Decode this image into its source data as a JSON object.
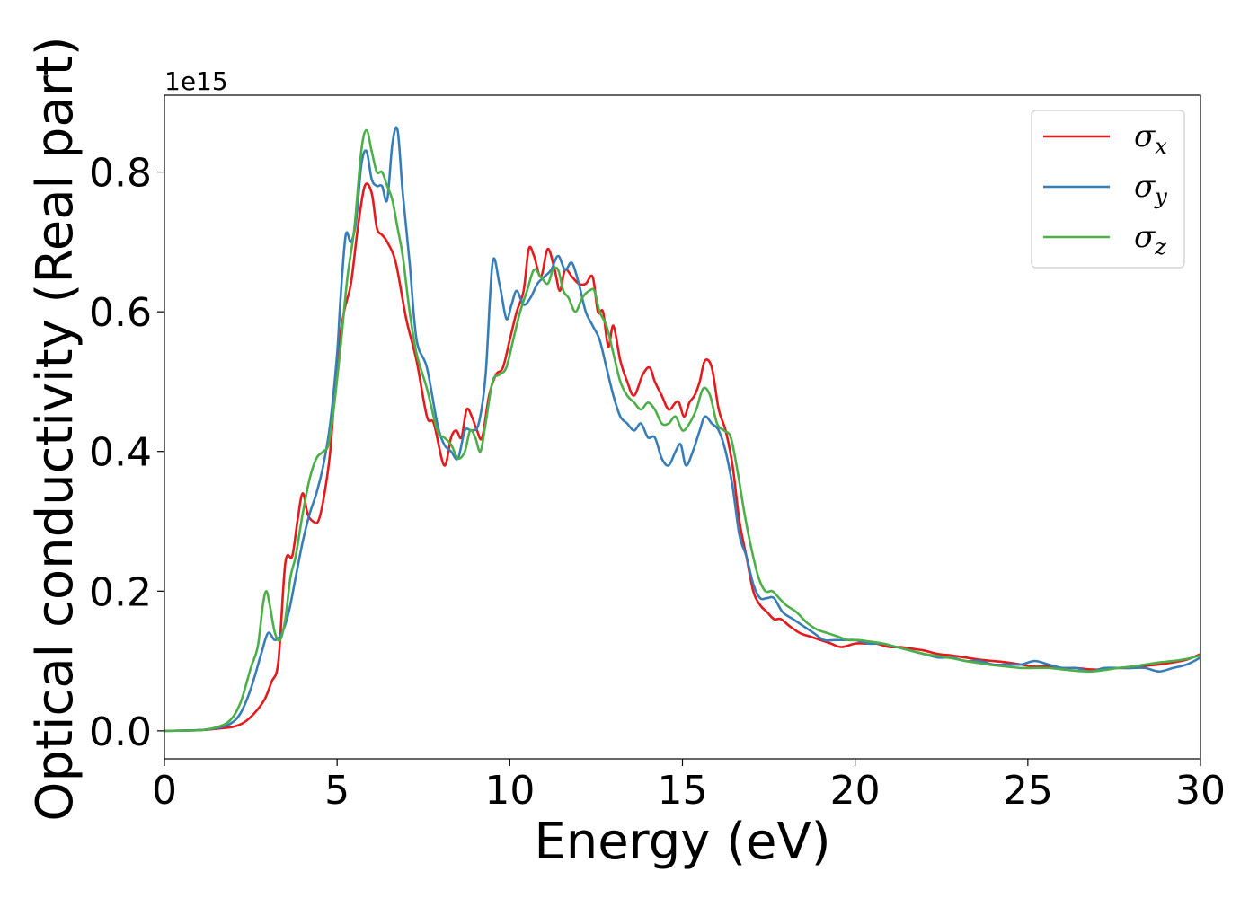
{
  "chart_data": {
    "type": "line",
    "xlabel": "Energy (eV)",
    "ylabel": "Optical conductivity (Real part)",
    "y_offset_label": "1e15",
    "xlim": [
      0,
      30
    ],
    "ylim": [
      -0.04,
      0.91
    ],
    "x_ticks": [
      0,
      5,
      10,
      15,
      20,
      25,
      30
    ],
    "x_tick_labels": [
      "0",
      "5",
      "10",
      "15",
      "20",
      "25",
      "30"
    ],
    "y_ticks": [
      0.0,
      0.2,
      0.4,
      0.6,
      0.8
    ],
    "y_tick_labels": [
      "0.0",
      "0.2",
      "0.4",
      "0.6",
      "0.8"
    ],
    "grid": false,
    "legend_position": "top-right",
    "series": [
      {
        "name": "σ",
        "subscript": "x",
        "color": "#e41a1c",
        "x": [
          0,
          1,
          1.5,
          2.0,
          2.3,
          2.6,
          2.9,
          3.1,
          3.3,
          3.5,
          3.7,
          3.85,
          4.0,
          4.15,
          4.3,
          4.45,
          4.6,
          4.8,
          5.0,
          5.2,
          5.4,
          5.6,
          5.8,
          6.0,
          6.15,
          6.3,
          6.45,
          6.7,
          7.0,
          7.3,
          7.6,
          7.8,
          8.1,
          8.3,
          8.45,
          8.6,
          8.75,
          8.9,
          9.05,
          9.2,
          9.4,
          9.6,
          9.8,
          10.0,
          10.2,
          10.4,
          10.55,
          10.7,
          10.9,
          11.1,
          11.3,
          11.45,
          11.6,
          11.8,
          12.0,
          12.2,
          12.4,
          12.55,
          12.7,
          12.85,
          13.0,
          13.2,
          13.4,
          13.6,
          13.85,
          14.05,
          14.2,
          14.4,
          14.6,
          14.8,
          14.9,
          15.05,
          15.2,
          15.35,
          15.5,
          15.65,
          15.85,
          16.05,
          16.25,
          16.45,
          16.65,
          16.85,
          17.05,
          17.25,
          17.45,
          17.65,
          17.85,
          18.1,
          18.4,
          18.7,
          19.0,
          19.3,
          19.6,
          20.0,
          20.3,
          20.6,
          21.0,
          21.3,
          21.6,
          22.0,
          22.4,
          22.8,
          23.2,
          23.6,
          24.0,
          24.4,
          24.8,
          25.2,
          25.6,
          26.0,
          26.4,
          26.8,
          27.2,
          27.6,
          28.0,
          28.4,
          28.8,
          29.2,
          29.6,
          30.0
        ],
        "y": [
          0.0,
          0.001,
          0.003,
          0.006,
          0.012,
          0.025,
          0.045,
          0.07,
          0.1,
          0.24,
          0.25,
          0.3,
          0.34,
          0.31,
          0.3,
          0.3,
          0.33,
          0.4,
          0.53,
          0.6,
          0.64,
          0.72,
          0.78,
          0.77,
          0.72,
          0.71,
          0.7,
          0.67,
          0.59,
          0.53,
          0.45,
          0.44,
          0.38,
          0.42,
          0.43,
          0.42,
          0.46,
          0.45,
          0.43,
          0.42,
          0.48,
          0.51,
          0.52,
          0.56,
          0.6,
          0.63,
          0.69,
          0.68,
          0.65,
          0.69,
          0.66,
          0.63,
          0.66,
          0.65,
          0.64,
          0.64,
          0.65,
          0.6,
          0.6,
          0.55,
          0.58,
          0.53,
          0.5,
          0.48,
          0.51,
          0.52,
          0.5,
          0.48,
          0.46,
          0.47,
          0.47,
          0.45,
          0.47,
          0.48,
          0.5,
          0.53,
          0.52,
          0.46,
          0.43,
          0.38,
          0.3,
          0.25,
          0.2,
          0.18,
          0.17,
          0.16,
          0.16,
          0.15,
          0.14,
          0.135,
          0.13,
          0.125,
          0.12,
          0.125,
          0.125,
          0.125,
          0.12,
          0.12,
          0.118,
          0.115,
          0.11,
          0.108,
          0.105,
          0.102,
          0.1,
          0.098,
          0.095,
          0.092,
          0.092,
          0.09,
          0.09,
          0.088,
          0.088,
          0.09,
          0.09,
          0.093,
          0.095,
          0.098,
          0.102,
          0.11
        ]
      },
      {
        "name": "σ",
        "subscript": "y",
        "color": "#377eb8",
        "x": [
          0,
          1,
          1.5,
          1.9,
          2.2,
          2.5,
          2.8,
          3.0,
          3.2,
          3.4,
          3.6,
          3.8,
          4.0,
          4.2,
          4.4,
          4.6,
          4.8,
          5.0,
          5.1,
          5.25,
          5.4,
          5.55,
          5.7,
          5.85,
          6.0,
          6.15,
          6.3,
          6.45,
          6.6,
          6.75,
          6.9,
          7.1,
          7.3,
          7.6,
          7.9,
          8.1,
          8.3,
          8.5,
          8.7,
          8.9,
          9.1,
          9.3,
          9.5,
          9.7,
          9.9,
          10.05,
          10.2,
          10.4,
          10.6,
          10.8,
          11.0,
          11.2,
          11.4,
          11.6,
          11.8,
          12.0,
          12.2,
          12.4,
          12.6,
          12.8,
          13.0,
          13.2,
          13.4,
          13.6,
          13.8,
          14.0,
          14.2,
          14.4,
          14.6,
          14.8,
          14.95,
          15.1,
          15.3,
          15.5,
          15.65,
          15.85,
          16.05,
          16.25,
          16.45,
          16.65,
          16.85,
          17.05,
          17.25,
          17.45,
          17.65,
          17.9,
          18.2,
          18.5,
          18.8,
          19.1,
          19.4,
          19.7,
          20.0,
          20.4,
          20.8,
          21.2,
          21.6,
          22.0,
          22.4,
          22.8,
          23.2,
          23.6,
          24.0,
          24.4,
          24.8,
          25.2,
          25.6,
          26.0,
          26.4,
          26.8,
          27.2,
          27.6,
          28.0,
          28.4,
          28.8,
          29.2,
          29.6,
          30.0
        ],
        "y": [
          0.0,
          0.001,
          0.004,
          0.01,
          0.025,
          0.06,
          0.11,
          0.14,
          0.13,
          0.14,
          0.17,
          0.22,
          0.27,
          0.31,
          0.34,
          0.38,
          0.44,
          0.54,
          0.62,
          0.71,
          0.7,
          0.73,
          0.81,
          0.83,
          0.79,
          0.78,
          0.78,
          0.76,
          0.84,
          0.86,
          0.77,
          0.67,
          0.56,
          0.52,
          0.44,
          0.41,
          0.4,
          0.39,
          0.43,
          0.43,
          0.44,
          0.51,
          0.67,
          0.64,
          0.59,
          0.61,
          0.63,
          0.61,
          0.62,
          0.64,
          0.65,
          0.66,
          0.68,
          0.66,
          0.67,
          0.64,
          0.6,
          0.58,
          0.56,
          0.52,
          0.48,
          0.45,
          0.44,
          0.43,
          0.44,
          0.42,
          0.42,
          0.39,
          0.38,
          0.4,
          0.41,
          0.38,
          0.4,
          0.43,
          0.45,
          0.44,
          0.43,
          0.4,
          0.35,
          0.28,
          0.25,
          0.21,
          0.19,
          0.19,
          0.19,
          0.17,
          0.16,
          0.15,
          0.14,
          0.13,
          0.13,
          0.13,
          0.13,
          0.125,
          0.125,
          0.12,
          0.115,
          0.11,
          0.105,
          0.105,
          0.1,
          0.1,
          0.095,
          0.095,
          0.095,
          0.1,
          0.095,
          0.09,
          0.09,
          0.085,
          0.09,
          0.09,
          0.09,
          0.09,
          0.085,
          0.09,
          0.095,
          0.105
        ]
      },
      {
        "name": "σ",
        "subscript": "z",
        "color": "#4daf4a",
        "x": [
          0,
          1,
          1.5,
          1.9,
          2.2,
          2.5,
          2.7,
          2.85,
          2.95,
          3.05,
          3.2,
          3.35,
          3.5,
          3.65,
          3.8,
          4.0,
          4.2,
          4.4,
          4.6,
          4.75,
          4.9,
          5.1,
          5.3,
          5.5,
          5.7,
          5.85,
          6.0,
          6.15,
          6.3,
          6.45,
          6.6,
          6.75,
          6.9,
          7.1,
          7.3,
          7.6,
          7.9,
          8.1,
          8.3,
          8.5,
          8.7,
          8.85,
          9.0,
          9.15,
          9.3,
          9.5,
          9.7,
          9.9,
          10.1,
          10.3,
          10.5,
          10.7,
          10.9,
          11.1,
          11.25,
          11.4,
          11.55,
          11.7,
          11.9,
          12.1,
          12.3,
          12.45,
          12.6,
          12.8,
          13.0,
          13.2,
          13.4,
          13.6,
          13.8,
          14.0,
          14.2,
          14.4,
          14.6,
          14.8,
          15.0,
          15.2,
          15.4,
          15.6,
          15.8,
          16.0,
          16.2,
          16.4,
          16.6,
          16.8,
          17.0,
          17.2,
          17.4,
          17.6,
          17.8,
          18.0,
          18.3,
          18.6,
          18.9,
          19.2,
          19.5,
          19.8,
          20.1,
          20.4,
          20.8,
          21.2,
          21.6,
          22.0,
          22.4,
          22.8,
          23.2,
          23.6,
          24.0,
          24.4,
          24.8,
          25.2,
          25.6,
          26.0,
          26.4,
          26.8,
          27.2,
          27.6,
          28.0,
          28.4,
          28.8,
          29.2,
          29.6,
          30.0
        ],
        "y": [
          0.0,
          0.001,
          0.005,
          0.015,
          0.04,
          0.09,
          0.12,
          0.18,
          0.2,
          0.18,
          0.14,
          0.13,
          0.16,
          0.22,
          0.25,
          0.31,
          0.36,
          0.39,
          0.4,
          0.41,
          0.46,
          0.55,
          0.65,
          0.72,
          0.83,
          0.86,
          0.83,
          0.8,
          0.8,
          0.78,
          0.76,
          0.72,
          0.68,
          0.6,
          0.54,
          0.49,
          0.43,
          0.42,
          0.41,
          0.39,
          0.4,
          0.43,
          0.42,
          0.4,
          0.44,
          0.5,
          0.51,
          0.52,
          0.56,
          0.6,
          0.63,
          0.66,
          0.65,
          0.64,
          0.66,
          0.66,
          0.63,
          0.62,
          0.6,
          0.62,
          0.63,
          0.63,
          0.6,
          0.58,
          0.54,
          0.5,
          0.48,
          0.47,
          0.46,
          0.47,
          0.46,
          0.44,
          0.44,
          0.45,
          0.43,
          0.44,
          0.46,
          0.49,
          0.48,
          0.44,
          0.43,
          0.42,
          0.37,
          0.31,
          0.26,
          0.22,
          0.2,
          0.2,
          0.19,
          0.18,
          0.17,
          0.155,
          0.145,
          0.14,
          0.135,
          0.13,
          0.13,
          0.128,
          0.125,
          0.12,
          0.115,
          0.11,
          0.107,
          0.104,
          0.1,
          0.097,
          0.094,
          0.092,
          0.09,
          0.09,
          0.09,
          0.088,
          0.086,
          0.085,
          0.087,
          0.09,
          0.092,
          0.095,
          0.098,
          0.1,
          0.103,
          0.108
        ]
      }
    ]
  }
}
